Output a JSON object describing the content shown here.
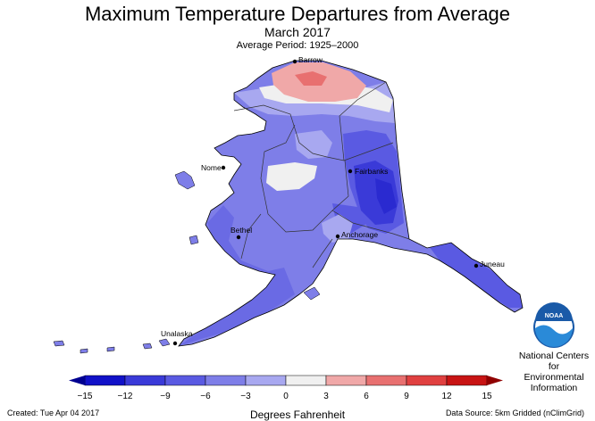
{
  "title": "Maximum Temperature Departures from Average",
  "subtitle": "March 2017",
  "period": "Average Period: 1925–2000",
  "cities": {
    "barrow": "Barrow",
    "nome": "Nome",
    "fairbanks": "Fairbanks",
    "bethel": "Bethel",
    "anchorage": "Anchorage",
    "juneau": "Juneau",
    "unalaska": "Unalaska"
  },
  "legend": {
    "ticks": [
      "−15",
      "−12",
      "−9",
      "−6",
      "−3",
      "0",
      "3",
      "6",
      "9",
      "12",
      "15"
    ],
    "colors": [
      "#1111c8",
      "#3a3ad8",
      "#5a5ae2",
      "#7e7ee8",
      "#a8a8f0",
      "#f0f0f0",
      "#f0f0f0",
      "#f0a8a8",
      "#e87070",
      "#e04040",
      "#c81414"
    ],
    "unit": "Degrees Fahrenheit"
  },
  "org": {
    "logo_text": "NOAA",
    "line1": "National Centers for",
    "line2": "Environmental",
    "line3": "Information"
  },
  "footer": {
    "created": "Created: Tue Apr 04 2017",
    "source": "Data Source: 5km Gridded (nClimGrid)"
  }
}
